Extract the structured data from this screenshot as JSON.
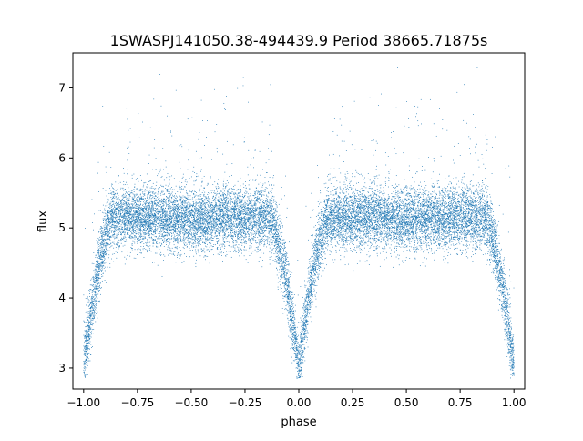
{
  "chart_data": {
    "type": "scatter",
    "title": "1SWASPJ141050.38-494439.9 Period 38665.71875s",
    "xlabel": "phase",
    "ylabel": "flux",
    "xlim": [
      -1.05,
      1.05
    ],
    "ylim": [
      2.7,
      7.5
    ],
    "xticks": [
      -1.0,
      -0.75,
      -0.5,
      -0.25,
      0.0,
      0.25,
      0.5,
      0.75,
      1.0
    ],
    "xtick_labels": [
      "−1.00",
      "−0.75",
      "−0.50",
      "−0.25",
      "0.00",
      "0.25",
      "0.50",
      "0.75",
      "1.00"
    ],
    "yticks": [
      3,
      4,
      5,
      6,
      7
    ],
    "ytick_labels": [
      "3",
      "4",
      "5",
      "6",
      "7"
    ],
    "grid": false,
    "marker_color": "#1f77b4",
    "profile": {
      "baseline_flux": 5.15,
      "scatter_sd": 0.22,
      "primary_eclipse_phases": [
        -1.0,
        0.0,
        1.0
      ],
      "primary_eclipse_min_flux": 3.0,
      "secondary_eclipse_phases": [
        -0.5,
        0.5
      ],
      "secondary_eclipse_depth": 0.05,
      "eclipse_half_width": 0.14,
      "n_points": 18000
    }
  }
}
